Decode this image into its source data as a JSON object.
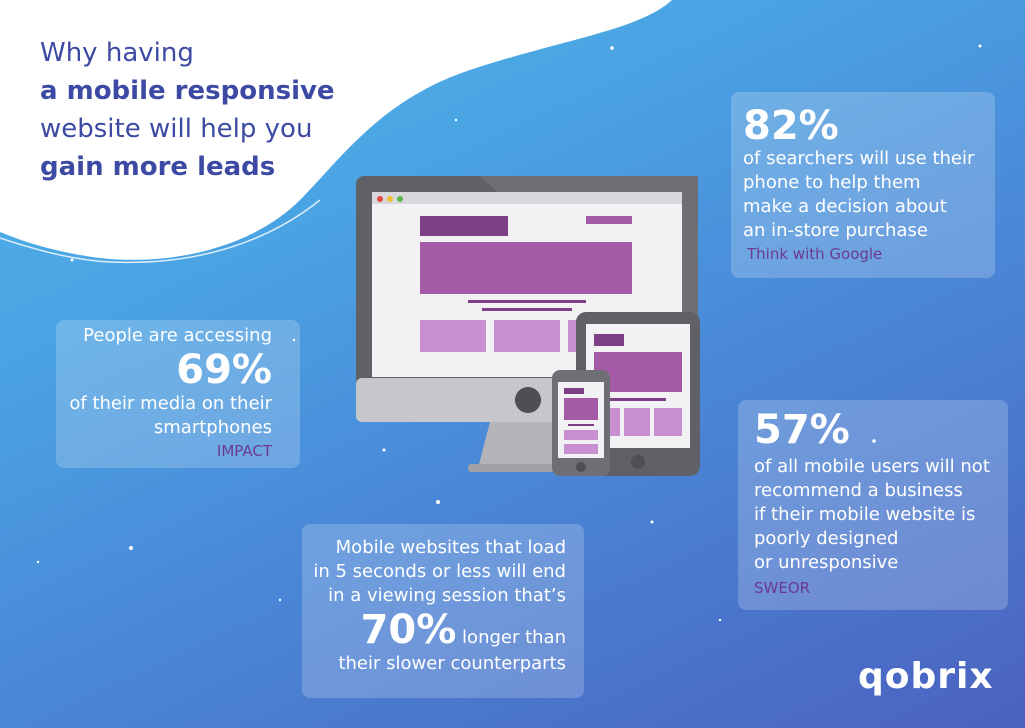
{
  "headline": {
    "line1": "Why having",
    "line2": "a mobile responsive",
    "line3": "website will help you",
    "line4": "gain more leads"
  },
  "stat_82": {
    "value": "82%",
    "lines": [
      "of searchers will use their",
      "phone to help them",
      "make a decision about",
      "an in-store purchase"
    ],
    "source": "Think with Google"
  },
  "stat_69": {
    "intro": "People are accessing",
    "value": "69%",
    "lines": [
      "of their media on their",
      "smartphones"
    ],
    "source": "IMPACT"
  },
  "stat_57": {
    "value": "57%",
    "lines": [
      "of all mobile users will not",
      "recommend a business",
      "if their mobile website is",
      "poorly designed",
      "or unresponsive"
    ],
    "source": "SWEOR"
  },
  "stat_70": {
    "lines": [
      "Mobile websites that load",
      "in 5 seconds or less will end",
      "in a viewing session that’s"
    ],
    "value": "70%",
    "value_suffix": " longer than",
    "last_line": "their slower counterparts"
  },
  "brand": {
    "logo_text": "qobrix"
  },
  "colors": {
    "headline": "#3d4aa3",
    "source": "#6c3a92",
    "accent_purple": "#a55aa8"
  },
  "illustration": {
    "icons": [
      "desktop-monitor-icon",
      "tablet-icon",
      "smartphone-icon"
    ]
  }
}
